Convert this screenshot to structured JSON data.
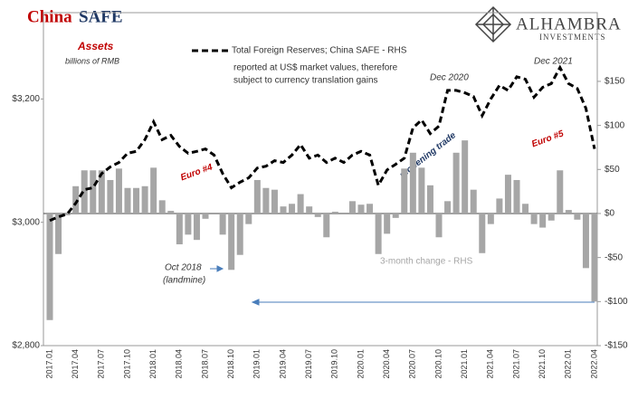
{
  "chart_data": {
    "type": "combo",
    "title_a": "China",
    "title_b": "SAFE",
    "logo": "ALHAMBRA",
    "logo_sub": "INVESTMENTS",
    "y_label": "Assets",
    "y_sublabel": "billions of RMB",
    "note": [
      "reported at US$ market values, therefore",
      "subject to currency translation gains"
    ],
    "annotations": {
      "dec2020": "Dec 2020",
      "dec2021": "Dec 2021",
      "euro4": "Euro #4",
      "euro5": "Euro #5",
      "reopening": "reopening trade",
      "oct2018": "Oct 2018",
      "landmine": "(landmine)"
    },
    "categories": [
      "2017.01",
      null,
      null,
      "2017.04",
      null,
      null,
      "2017.07",
      null,
      null,
      "2017.10",
      null,
      null,
      "2018.01",
      null,
      null,
      "2018.04",
      null,
      null,
      "2018.07",
      null,
      null,
      "2018.10",
      null,
      null,
      "2019.01",
      null,
      null,
      "2019.04",
      null,
      null,
      "2019.07",
      null,
      null,
      "2019.10",
      null,
      null,
      "2020.01",
      null,
      null,
      "2020.04",
      null,
      null,
      "2020.07",
      null,
      null,
      "2020.10",
      null,
      null,
      "2021.01",
      null,
      null,
      "2021.04",
      null,
      null,
      "2021.07",
      null,
      null,
      "2021.10",
      null,
      null,
      "2022.01",
      null,
      null,
      "2022.04"
    ],
    "series": [
      {
        "name": "Total Foreign Reserves; China SAFE - RHS",
        "type": "line",
        "color": "#000000",
        "axis": "y",
        "values": [
          3003,
          3009,
          3013,
          3031,
          3053,
          3056,
          3079,
          3090,
          3097,
          3112,
          3115,
          3134,
          3163,
          3134,
          3141,
          3123,
          3112,
          3115,
          3119,
          3109,
          3079,
          3056,
          3065,
          3072,
          3088,
          3091,
          3100,
          3097,
          3109,
          3126,
          3104,
          3109,
          3097,
          3104,
          3097,
          3109,
          3115,
          3109,
          3060,
          3085,
          3094,
          3104,
          3153,
          3166,
          3144,
          3156,
          3214,
          3214,
          3210,
          3204,
          3173,
          3200,
          3222,
          3214,
          3236,
          3232,
          3203,
          3219,
          3225,
          3251,
          3225,
          3217,
          3185,
          3119
        ]
      },
      {
        "name": "3-month change - RHS",
        "type": "bar",
        "color": "#a6a6a6",
        "axis": "y2",
        "values": [
          -121,
          -46,
          -2,
          31,
          49,
          49,
          49,
          38,
          51,
          29,
          29,
          31,
          52,
          15,
          3,
          -35,
          -24,
          -30,
          -6,
          0,
          -24,
          -64,
          -47,
          -12,
          38,
          29,
          27,
          8,
          11,
          22,
          8,
          -4,
          -27,
          2,
          1,
          14,
          10,
          11,
          -46,
          -23,
          -5,
          51,
          69,
          52,
          32,
          -27,
          14,
          69,
          83,
          27,
          -45,
          -12,
          17,
          44,
          38,
          11,
          -12,
          -16,
          -8,
          49,
          4,
          -7,
          -62,
          -100
        ]
      }
    ],
    "ylim": [
      2800,
      3340
    ],
    "yticks": [
      {
        "value": 2800,
        "label": "$2,800"
      },
      {
        "value": 3000,
        "label": "$3,000"
      },
      {
        "value": 3200,
        "label": "$3,200"
      }
    ],
    "y2lim": [
      -150,
      228
    ],
    "y2ticks": [
      {
        "value": -150,
        "label": "-$150"
      },
      {
        "value": -100,
        "label": "-$100"
      },
      {
        "value": -50,
        "label": "-$50"
      },
      {
        "value": 0,
        "label": "$0"
      },
      {
        "value": 50,
        "label": "$50"
      },
      {
        "value": 100,
        "label": "$100"
      },
      {
        "value": 150,
        "label": "$150"
      }
    ]
  }
}
